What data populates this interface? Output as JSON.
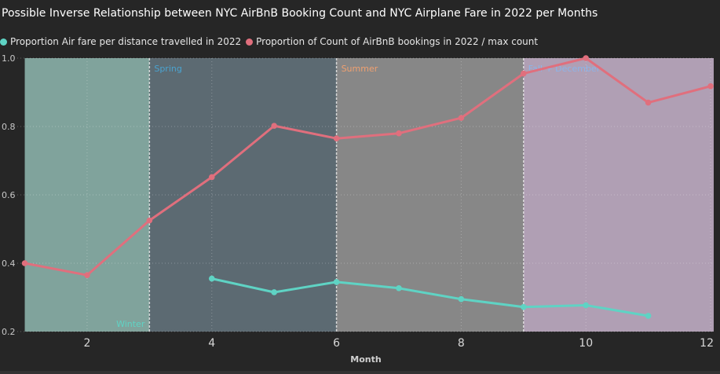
{
  "chart_data": {
    "type": "line",
    "title": "Possible Inverse Relationship between NYC AirBnB Booking Count and NYC Airplane Fare in 2022 per Months",
    "xlabel": "Month",
    "ylabel": "",
    "xlim": [
      1,
      12
    ],
    "ylim": [
      0.2,
      1.0
    ],
    "x_ticks": [
      2,
      4,
      6,
      8,
      10,
      12
    ],
    "y_ticks": [
      0.2,
      0.4,
      0.6,
      0.8,
      1.0
    ],
    "x_tick_labels": [
      "2",
      "4",
      "6",
      "8",
      "10",
      "12"
    ],
    "y_tick_labels": [
      "0.2",
      "0.4",
      "0.6",
      "0.8",
      "1.0"
    ],
    "grid": true,
    "legend_placement": "top-left",
    "series": [
      {
        "name": "Proportion Air fare per distance travelled in 2022",
        "color": "#5fd3c4",
        "x": [
          4,
          5,
          6,
          7,
          8,
          9,
          10,
          11
        ],
        "values": [
          0.355,
          0.315,
          0.345,
          0.327,
          0.295,
          0.272,
          0.277,
          0.246
        ]
      },
      {
        "name": "Proportion of Count of AirBnB bookings in 2022 / max count",
        "color": "#e06f7d",
        "x": [
          1,
          2,
          3,
          4,
          5,
          6,
          7,
          8,
          9,
          10,
          11,
          12
        ],
        "values": [
          0.4,
          0.365,
          0.525,
          0.652,
          0.802,
          0.765,
          0.78,
          0.825,
          0.955,
          1.0,
          0.87,
          0.918
        ]
      }
    ],
    "regions": [
      {
        "label": "Winter",
        "from": 1,
        "to": 3,
        "color": "#80a39c",
        "label_color": "#5fd3c4",
        "label_position": "bottom-right"
      },
      {
        "label": "Spring",
        "from": 3,
        "to": 6,
        "color": "#5c6a72",
        "label_color": "#4aa3d0",
        "label_position": "top-left"
      },
      {
        "label": "Summer",
        "from": 6,
        "to": 9,
        "color": "#878787",
        "label_color": "#f0a070",
        "label_position": "top-left"
      },
      {
        "label": "Fall + December",
        "from": 9,
        "to": 12.2,
        "color": "#b09fb4",
        "label_color": "#8cb4e8",
        "label_position": "top-left"
      }
    ]
  }
}
